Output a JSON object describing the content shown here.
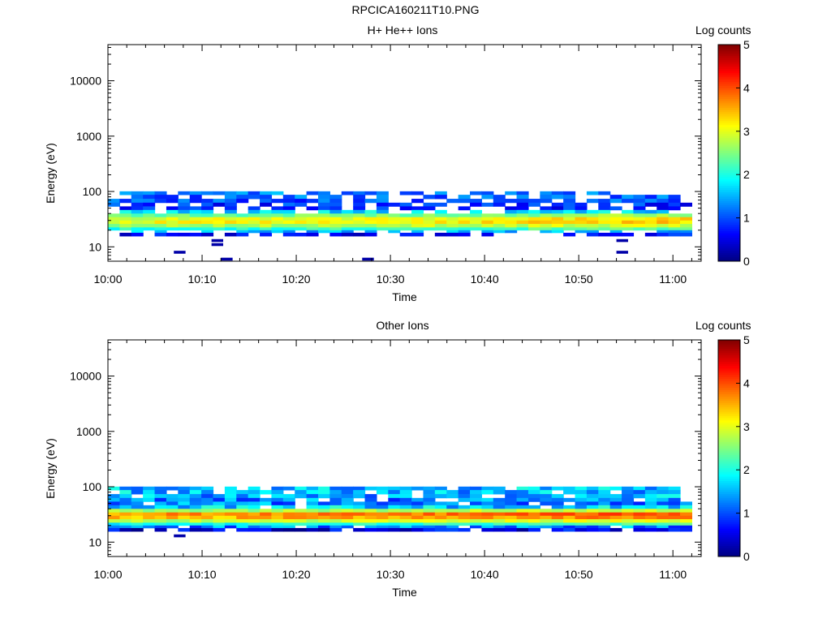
{
  "figure_title": "RPCICA160211T10.PNG",
  "chart_data": [
    {
      "type": "heatmap",
      "title": "H+ He++ Ions",
      "xlabel": "Time",
      "ylabel": "Energy (eV)",
      "x_ticks": [
        "10:00",
        "10:10",
        "10:20",
        "10:30",
        "10:40",
        "10:50",
        "11:00"
      ],
      "y_ticks": [
        "10",
        "100",
        "1000",
        "10000"
      ],
      "y_scale": "log",
      "ylim": [
        5.5,
        45000
      ],
      "xlim": [
        "10:00",
        "11:03"
      ],
      "colorbar": {
        "label": "Log counts",
        "ticks": [
          "0",
          "1",
          "2",
          "3",
          "4",
          "5"
        ],
        "range": [
          0,
          5
        ],
        "colormap": "jet"
      },
      "data_range": {
        "x": [
          "10:00",
          "11:02"
        ],
        "y": [
          15,
          95
        ]
      },
      "band_profile": [
        {
          "energy": 95,
          "log_counts": 1.0
        },
        {
          "energy": 80,
          "log_counts": 0.9
        },
        {
          "energy": 68,
          "log_counts": 0.8
        },
        {
          "energy": 58,
          "log_counts": 0.6
        },
        {
          "energy": 50,
          "log_counts": 0.5
        },
        {
          "energy": 43,
          "log_counts": 1.5
        },
        {
          "energy": 37,
          "log_counts": 2.3
        },
        {
          "energy": 32,
          "log_counts": 2.9
        },
        {
          "energy": 28,
          "log_counts": 3.0
        },
        {
          "energy": 24,
          "log_counts": 2.6
        },
        {
          "energy": 21,
          "log_counts": 2.0
        },
        {
          "energy": 19,
          "log_counts": 1.3
        },
        {
          "energy": 17,
          "log_counts": 0.4
        }
      ],
      "isolated_points": [
        {
          "time": "10:07",
          "energy": 8,
          "log_counts": 0.2
        },
        {
          "time": "10:11",
          "energy": 13,
          "log_counts": 0.2
        },
        {
          "time": "10:11",
          "energy": 11,
          "log_counts": 0.2
        },
        {
          "time": "10:12",
          "energy": 6,
          "log_counts": 0.2
        },
        {
          "time": "10:27",
          "energy": 6,
          "log_counts": 0.2
        },
        {
          "time": "10:54",
          "energy": 13,
          "log_counts": 0.2
        },
        {
          "time": "10:54",
          "energy": 8,
          "log_counts": 0.2
        }
      ]
    },
    {
      "type": "heatmap",
      "title": "Other Ions",
      "xlabel": "Time",
      "ylabel": "Energy (eV)",
      "x_ticks": [
        "10:00",
        "10:10",
        "10:20",
        "10:30",
        "10:40",
        "10:50",
        "11:00"
      ],
      "y_ticks": [
        "10",
        "100",
        "1000",
        "10000"
      ],
      "y_scale": "log",
      "ylim": [
        5.5,
        45000
      ],
      "xlim": [
        "10:00",
        "11:03"
      ],
      "colorbar": {
        "label": "Log counts",
        "ticks": [
          "0",
          "1",
          "2",
          "3",
          "4",
          "5"
        ],
        "range": [
          0,
          5
        ],
        "colormap": "jet"
      },
      "data_range": {
        "x": [
          "10:00",
          "11:02"
        ],
        "y": [
          15,
          95
        ]
      },
      "band_profile": [
        {
          "energy": 95,
          "log_counts": 1.5
        },
        {
          "energy": 80,
          "log_counts": 1.5
        },
        {
          "energy": 68,
          "log_counts": 1.4
        },
        {
          "energy": 58,
          "log_counts": 1.2
        },
        {
          "energy": 50,
          "log_counts": 1.2
        },
        {
          "energy": 43,
          "log_counts": 1.6
        },
        {
          "energy": 37,
          "log_counts": 2.6
        },
        {
          "energy": 32,
          "log_counts": 3.6
        },
        {
          "energy": 28,
          "log_counts": 3.4
        },
        {
          "energy": 24,
          "log_counts": 2.7
        },
        {
          "energy": 21,
          "log_counts": 1.9
        },
        {
          "energy": 19,
          "log_counts": 1.2
        },
        {
          "energy": 17,
          "log_counts": 0.4
        }
      ],
      "isolated_points": [
        {
          "time": "10:07",
          "energy": 13,
          "log_counts": 0.2
        }
      ]
    }
  ]
}
